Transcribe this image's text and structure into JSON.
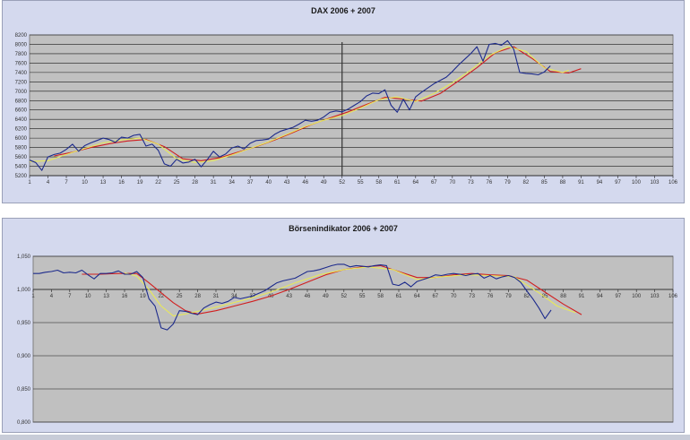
{
  "chart_data": [
    {
      "type": "line",
      "title": "DAX 2006 + 2007",
      "ylim": [
        5200,
        8200
      ],
      "yticks": [
        5200,
        5400,
        5600,
        5800,
        6000,
        6200,
        6400,
        6600,
        6800,
        7000,
        7200,
        7400,
        7600,
        7800,
        8000,
        8200
      ],
      "xticks": [
        1,
        4,
        7,
        10,
        13,
        16,
        19,
        22,
        25,
        28,
        31,
        34,
        37,
        40,
        43,
        46,
        49,
        52,
        55,
        58,
        61,
        64,
        67,
        70,
        73,
        76,
        79,
        82,
        85,
        88,
        91,
        94,
        97,
        100,
        103,
        106
      ],
      "xlim": [
        1,
        106
      ],
      "grid": true,
      "vline_x": 52,
      "series": [
        {
          "color": "#1c2a8c",
          "x": [
            1,
            2,
            3,
            4,
            5,
            6,
            7,
            8,
            9,
            10,
            11,
            12,
            13,
            14,
            15,
            16,
            17,
            18,
            19,
            20,
            21,
            22,
            23,
            24,
            25,
            26,
            27,
            28,
            29,
            30,
            31,
            32,
            33,
            34,
            35,
            36,
            37,
            38,
            39,
            40,
            41,
            42,
            43,
            44,
            45,
            46,
            47,
            48,
            49,
            50,
            51,
            52,
            53,
            54,
            55,
            56,
            57,
            58,
            59,
            60,
            61,
            62,
            63,
            64,
            65,
            66,
            67,
            68,
            69,
            70,
            71,
            72,
            73,
            74,
            75,
            76,
            77,
            78,
            79,
            80,
            81,
            82,
            83,
            84,
            85,
            86
          ],
          "values": [
            5530,
            5480,
            5310,
            5600,
            5650,
            5680,
            5760,
            5870,
            5720,
            5840,
            5900,
            5950,
            6000,
            5970,
            5910,
            6020,
            6000,
            6060,
            6080,
            5830,
            5870,
            5740,
            5450,
            5400,
            5550,
            5470,
            5490,
            5550,
            5390,
            5540,
            5720,
            5600,
            5660,
            5790,
            5830,
            5770,
            5890,
            5950,
            5960,
            5980,
            6080,
            6150,
            6190,
            6230,
            6300,
            6380,
            6360,
            6380,
            6450,
            6550,
            6580,
            6560,
            6620,
            6700,
            6780,
            6900,
            6960,
            6950,
            7030,
            6700,
            6550,
            6830,
            6600,
            6880,
            6980,
            7070,
            7160,
            7230,
            7300,
            7420,
            7560,
            7680,
            7800,
            7950,
            7640,
            8000,
            8020,
            7980,
            8080,
            7900,
            7400,
            7380,
            7370,
            7350,
            7410,
            7540
          ]
        },
        {
          "color": "#e8e85a",
          "x": [
            1,
            4,
            7,
            10,
            13,
            16,
            19,
            22,
            25,
            28,
            31,
            34,
            37,
            40,
            43,
            46,
            49,
            52,
            55,
            58,
            61,
            64,
            67,
            70,
            73,
            76,
            79,
            82,
            85,
            88,
            89
          ],
          "values": [
            5500,
            5520,
            5650,
            5780,
            5900,
            5960,
            6000,
            5870,
            5560,
            5480,
            5520,
            5640,
            5780,
            5920,
            6080,
            6250,
            6380,
            6480,
            6640,
            6820,
            6880,
            6780,
            6950,
            7180,
            7450,
            7760,
            7950,
            7850,
            7500,
            7400,
            7450
          ]
        },
        {
          "color": "#d11e1e",
          "x": [
            5,
            8,
            11,
            14,
            17,
            20,
            23,
            26,
            29,
            32,
            35,
            38,
            41,
            44,
            47,
            50,
            53,
            56,
            59,
            62,
            65,
            68,
            71,
            74,
            77,
            80,
            83,
            86,
            89,
            91
          ],
          "values": [
            5620,
            5700,
            5800,
            5880,
            5940,
            5970,
            5820,
            5560,
            5520,
            5580,
            5700,
            5820,
            5960,
            6120,
            6290,
            6430,
            6560,
            6720,
            6870,
            6830,
            6790,
            6950,
            7220,
            7500,
            7820,
            7950,
            7700,
            7420,
            7390,
            7480
          ]
        }
      ]
    },
    {
      "type": "line",
      "title": "Börsenindikator 2006 + 2007",
      "ylim": [
        0.8,
        1.05
      ],
      "yticks": [
        0.8,
        0.85,
        0.9,
        0.95,
        1.0,
        1.05
      ],
      "ytick_labels": [
        "0,800",
        "0,850",
        "0,900",
        "0,950",
        "1,000",
        "1,050"
      ],
      "xticks": [
        1,
        4,
        7,
        10,
        13,
        16,
        19,
        22,
        25,
        28,
        31,
        34,
        37,
        40,
        43,
        46,
        49,
        52,
        55,
        58,
        61,
        64,
        67,
        70,
        73,
        76,
        79,
        82,
        85,
        88,
        91,
        94,
        97,
        100,
        103,
        106
      ],
      "xlim": [
        1,
        106
      ],
      "grid": true,
      "series": [
        {
          "color": "#1c2a8c",
          "x": [
            1,
            2,
            3,
            4,
            5,
            6,
            7,
            8,
            9,
            10,
            11,
            12,
            13,
            14,
            15,
            16,
            17,
            18,
            19,
            20,
            21,
            22,
            23,
            24,
            25,
            26,
            27,
            28,
            29,
            30,
            31,
            32,
            33,
            34,
            35,
            36,
            37,
            38,
            39,
            40,
            41,
            42,
            43,
            44,
            45,
            46,
            47,
            48,
            49,
            50,
            51,
            52,
            53,
            54,
            55,
            56,
            57,
            58,
            59,
            60,
            61,
            62,
            63,
            64,
            65,
            66,
            67,
            68,
            69,
            70,
            71,
            72,
            73,
            74,
            75,
            76,
            77,
            78,
            79,
            80,
            81,
            82,
            83,
            84,
            85,
            86
          ],
          "values": [
            1.024,
            1.024,
            1.026,
            1.027,
            1.029,
            1.025,
            1.026,
            1.025,
            1.029,
            1.022,
            1.016,
            1.024,
            1.024,
            1.025,
            1.028,
            1.023,
            1.023,
            1.027,
            1.018,
            0.986,
            0.975,
            0.942,
            0.939,
            0.948,
            0.968,
            0.967,
            0.964,
            0.962,
            0.972,
            0.977,
            0.981,
            0.979,
            0.982,
            0.988,
            0.986,
            0.988,
            0.99,
            0.994,
            0.998,
            1.004,
            1.01,
            1.013,
            1.015,
            1.017,
            1.022,
            1.027,
            1.028,
            1.03,
            1.033,
            1.036,
            1.038,
            1.038,
            1.034,
            1.036,
            1.035,
            1.034,
            1.036,
            1.037,
            1.036,
            1.008,
            1.006,
            1.011,
            1.004,
            1.012,
            1.015,
            1.018,
            1.022,
            1.021,
            1.023,
            1.024,
            1.023,
            1.021,
            1.023,
            1.024,
            1.017,
            1.021,
            1.016,
            1.019,
            1.021,
            1.018,
            1.011,
            0.998,
            0.986,
            0.972,
            0.956,
            0.969
          ]
        },
        {
          "color": "#e8e85a",
          "x": [
            16,
            18,
            20,
            22,
            24,
            26,
            28,
            30,
            33,
            36,
            40,
            44,
            48,
            52,
            56,
            60,
            64,
            68,
            72,
            76,
            80,
            84,
            87,
            90
          ],
          "values": [
            1.025,
            1.02,
            1.0,
            0.975,
            0.96,
            0.963,
            0.967,
            0.971,
            0.978,
            0.985,
            0.996,
            1.01,
            1.022,
            1.03,
            1.034,
            1.03,
            1.015,
            1.019,
            1.022,
            1.021,
            1.019,
            0.995,
            0.975,
            0.965
          ]
        },
        {
          "color": "#d11e1e",
          "x": [
            9,
            12,
            15,
            18,
            20,
            22,
            24,
            26,
            28,
            31,
            34,
            37,
            40,
            43,
            46,
            49,
            52,
            55,
            58,
            61,
            64,
            67,
            70,
            73,
            76,
            79,
            82,
            85,
            88,
            91
          ],
          "values": [
            1.023,
            1.023,
            1.024,
            1.024,
            1.01,
            0.995,
            0.98,
            0.968,
            0.963,
            0.968,
            0.975,
            0.982,
            0.99,
            1.0,
            1.011,
            1.022,
            1.03,
            1.034,
            1.036,
            1.027,
            1.018,
            1.018,
            1.022,
            1.024,
            1.022,
            1.021,
            1.014,
            0.996,
            0.978,
            0.962
          ]
        }
      ]
    }
  ]
}
